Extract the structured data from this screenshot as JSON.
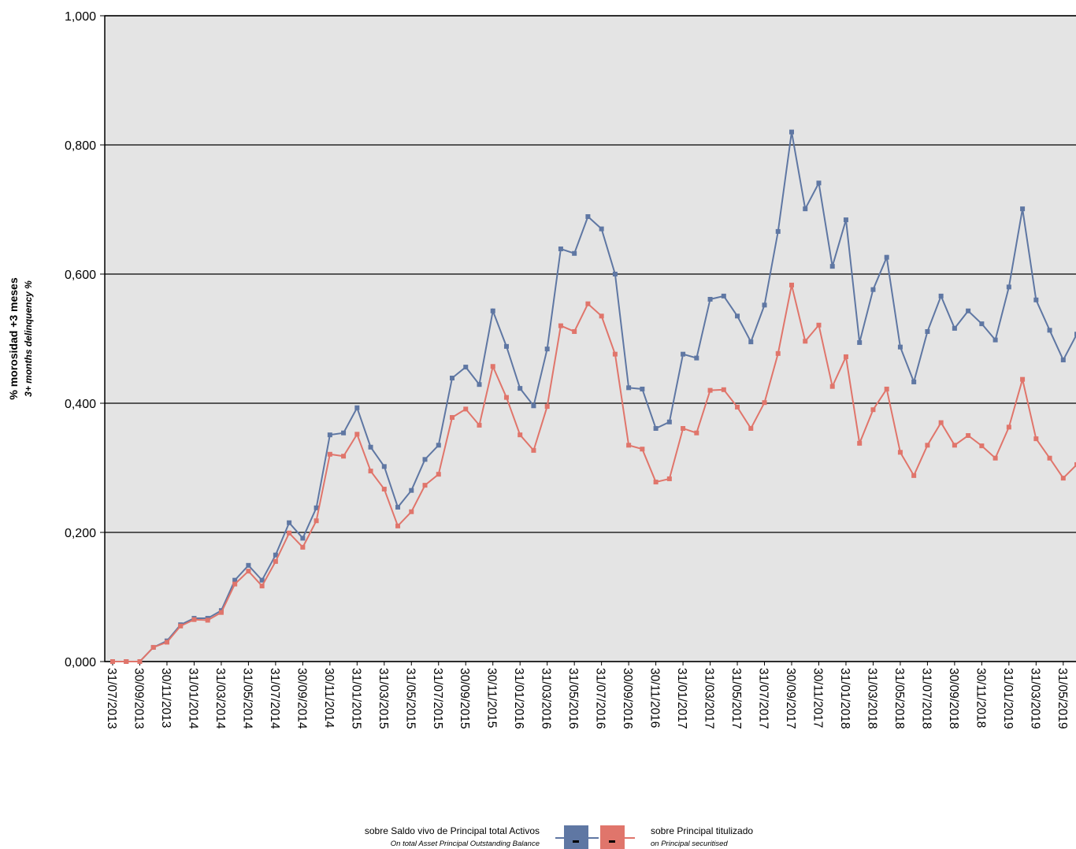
{
  "chart_data": {
    "type": "line",
    "y_label": "% morosidad +3 meses",
    "y_label_en": "3+ months delinquency %",
    "categories": [
      "31/07/2013",
      null,
      "30/09/2013",
      null,
      "30/11/2013",
      null,
      "31/01/2014",
      null,
      "31/03/2014",
      null,
      "31/05/2014",
      null,
      "31/07/2014",
      null,
      "30/09/2014",
      null,
      "30/11/2014",
      null,
      "31/01/2015",
      null,
      "31/03/2015",
      null,
      "31/05/2015",
      null,
      "31/07/2015",
      null,
      "30/09/2015",
      null,
      "30/11/2015",
      null,
      "31/01/2016",
      null,
      "31/03/2016",
      null,
      "31/05/2016",
      null,
      "31/07/2016",
      null,
      "30/09/2016",
      null,
      "30/11/2016",
      null,
      "31/01/2017",
      null,
      "31/03/2017",
      null,
      "31/05/2017",
      null,
      "31/07/2017",
      null,
      "30/09/2017",
      null,
      "30/11/2017",
      null,
      "31/01/2018",
      null,
      "31/03/2018",
      null,
      "31/05/2018",
      null,
      "31/07/2018",
      null,
      "30/09/2018",
      null,
      "30/11/2018",
      null,
      "31/01/2019",
      null,
      "31/03/2019",
      null,
      "31/05/2019",
      null
    ],
    "series": [
      {
        "name": "sobre Saldo vivo de Principal total Activos",
        "name_en": "On total Asset Principal Outstanding Balance",
        "color": "#5f77a3",
        "values": [
          0,
          0,
          0,
          0.022,
          0.032,
          0.057,
          0.067,
          0.067,
          0.079,
          0.126,
          0.149,
          0.126,
          0.165,
          0.215,
          0.191,
          0.238,
          0.351,
          0.354,
          0.393,
          0.332,
          0.302,
          0.239,
          0.265,
          0.313,
          0.335,
          0.439,
          0.456,
          0.429,
          0.543,
          0.488,
          0.423,
          0.396,
          0.484,
          0.639,
          0.632,
          0.689,
          0.67,
          0.6,
          0.424,
          0.422,
          0.361,
          0.371,
          0.476,
          0.47,
          0.561,
          0.566,
          0.535,
          0.495,
          0.552,
          0.666,
          0.82,
          0.701,
          0.741,
          0.612,
          0.684,
          0.494,
          0.576,
          0.626,
          0.487,
          0.433,
          0.511,
          0.566,
          0.516,
          0.543,
          0.523,
          0.498,
          0.58,
          0.701,
          0.56,
          0.513,
          0.467,
          0.507
        ]
      },
      {
        "name": "sobre Principal titulizado",
        "name_en": "on Principal securitised",
        "color": "#e0756b",
        "values": [
          0,
          0,
          0,
          0.022,
          0.03,
          0.055,
          0.065,
          0.064,
          0.076,
          0.12,
          0.14,
          0.117,
          0.155,
          0.199,
          0.177,
          0.218,
          0.321,
          0.318,
          0.352,
          0.295,
          0.267,
          0.21,
          0.232,
          0.273,
          0.29,
          0.378,
          0.391,
          0.366,
          0.457,
          0.409,
          0.351,
          0.327,
          0.395,
          0.52,
          0.511,
          0.554,
          0.535,
          0.476,
          0.335,
          0.329,
          0.278,
          0.283,
          0.361,
          0.354,
          0.42,
          0.421,
          0.394,
          0.361,
          0.401,
          0.477,
          0.583,
          0.496,
          0.521,
          0.426,
          0.472,
          0.338,
          0.39,
          0.422,
          0.324,
          0.288,
          0.335,
          0.37,
          0.335,
          0.35,
          0.334,
          0.315,
          0.363,
          0.437,
          0.345,
          0.315,
          0.284,
          0.305
        ]
      }
    ],
    "ylim": [
      0,
      1
    ],
    "yticks": [
      {
        "value": 0,
        "label": "0,000"
      },
      {
        "value": 0.2,
        "label": "0,200"
      },
      {
        "value": 0.4,
        "label": "0,400"
      },
      {
        "value": 0.6,
        "label": "0,600"
      },
      {
        "value": 0.8,
        "label": "0,800"
      },
      {
        "value": 1,
        "label": "1,000"
      }
    ],
    "grid": true
  }
}
